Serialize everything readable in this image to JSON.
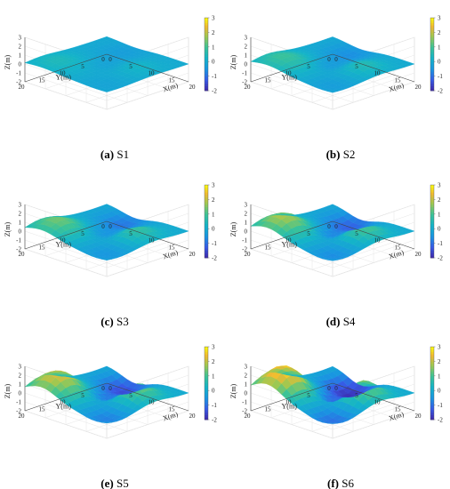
{
  "chart_data": [
    {
      "type": "surface",
      "caption_letter": "(a)",
      "caption_text": " S1",
      "amp": 0.2,
      "xlabel": "X(m)",
      "ylabel": "Y(m)",
      "zlabel": "Z(m)",
      "x_ticks": [
        "0",
        "5",
        "10",
        "15",
        "20"
      ],
      "y_ticks": [
        "0",
        "5",
        "10",
        "15",
        "20"
      ],
      "z_ticks": [
        "-2",
        "-1",
        "0",
        "1",
        "2",
        "3"
      ],
      "colorbar_ticks": [
        "-2",
        "-1",
        "0",
        "1",
        "2",
        "3"
      ],
      "xlim": [
        0,
        20
      ],
      "ylim": [
        0,
        20
      ],
      "zlim": [
        -2,
        3
      ],
      "clim": [
        -2,
        3
      ]
    },
    {
      "type": "surface",
      "caption_letter": "(b)",
      "caption_text": " S2",
      "amp": 0.4,
      "xlabel": "X(m)",
      "ylabel": "Y(m)",
      "zlabel": "Z(m)",
      "x_ticks": [
        "0",
        "5",
        "10",
        "15",
        "20"
      ],
      "y_ticks": [
        "0",
        "5",
        "10",
        "15",
        "20"
      ],
      "z_ticks": [
        "-2",
        "-1",
        "0",
        "1",
        "2",
        "3"
      ],
      "colorbar_ticks": [
        "-2",
        "-1",
        "0",
        "1",
        "2",
        "3"
      ],
      "xlim": [
        0,
        20
      ],
      "ylim": [
        0,
        20
      ],
      "zlim": [
        -2,
        3
      ],
      "clim": [
        -2,
        3
      ]
    },
    {
      "type": "surface",
      "caption_letter": "(c)",
      "caption_text": " S3",
      "amp": 0.6,
      "xlabel": "X(m)",
      "ylabel": "Y(m)",
      "zlabel": "Z(m)",
      "x_ticks": [
        "0",
        "5",
        "10",
        "15",
        "20"
      ],
      "y_ticks": [
        "0",
        "5",
        "10",
        "15",
        "20"
      ],
      "z_ticks": [
        "-2",
        "-1",
        "0",
        "1",
        "2",
        "3"
      ],
      "colorbar_ticks": [
        "-2",
        "-1",
        "0",
        "1",
        "2",
        "3"
      ],
      "xlim": [
        0,
        20
      ],
      "ylim": [
        0,
        20
      ],
      "zlim": [
        -2,
        3
      ],
      "clim": [
        -2,
        3
      ]
    },
    {
      "type": "surface",
      "caption_letter": "(d)",
      "caption_text": " S4",
      "amp": 0.8,
      "xlabel": "X(m)",
      "ylabel": "Y(m)",
      "zlabel": "Z(m)",
      "x_ticks": [
        "0",
        "5",
        "10",
        "15",
        "20"
      ],
      "y_ticks": [
        "0",
        "5",
        "10",
        "15",
        "20"
      ],
      "z_ticks": [
        "-2",
        "-1",
        "0",
        "1",
        "2",
        "3"
      ],
      "colorbar_ticks": [
        "-2",
        "-1",
        "0",
        "1",
        "2",
        "3"
      ],
      "xlim": [
        0,
        20
      ],
      "ylim": [
        0,
        20
      ],
      "zlim": [
        -2,
        3
      ],
      "clim": [
        -2,
        3
      ]
    },
    {
      "type": "surface",
      "caption_letter": "(e)",
      "caption_text": " S5",
      "amp": 1.0,
      "xlabel": "X(m)",
      "ylabel": "Y(m)",
      "zlabel": "Z(m)",
      "x_ticks": [
        "0",
        "5",
        "10",
        "15",
        "20"
      ],
      "y_ticks": [
        "0",
        "5",
        "10",
        "15",
        "20"
      ],
      "z_ticks": [
        "-2",
        "-1",
        "0",
        "1",
        "2",
        "3"
      ],
      "colorbar_ticks": [
        "-2",
        "-1",
        "0",
        "1",
        "2",
        "3"
      ],
      "xlim": [
        0,
        20
      ],
      "ylim": [
        0,
        20
      ],
      "zlim": [
        -2,
        3
      ],
      "clim": [
        -2,
        3
      ]
    },
    {
      "type": "surface",
      "caption_letter": "(f)",
      "caption_text": " S6",
      "amp": 1.25,
      "xlabel": "X(m)",
      "ylabel": "Y(m)",
      "zlabel": "Z(m)",
      "x_ticks": [
        "0",
        "5",
        "10",
        "15",
        "20"
      ],
      "y_ticks": [
        "0",
        "5",
        "10",
        "15",
        "20"
      ],
      "z_ticks": [
        "-2",
        "-1",
        "0",
        "1",
        "2",
        "3"
      ],
      "colorbar_ticks": [
        "-2",
        "-1",
        "0",
        "1",
        "2",
        "3"
      ],
      "xlim": [
        0,
        20
      ],
      "ylim": [
        0,
        20
      ],
      "zlim": [
        -2,
        3
      ],
      "clim": [
        -2,
        3
      ]
    }
  ]
}
